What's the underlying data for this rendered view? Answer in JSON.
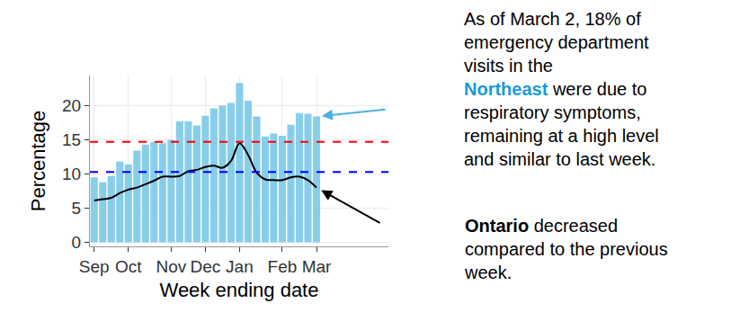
{
  "chart_data": {
    "type": "bar",
    "x_title": "Week ending date",
    "y_title": "Percentage",
    "categories": [
      "Sep",
      null,
      null,
      null,
      "Oct",
      null,
      null,
      null,
      null,
      "Nov",
      null,
      null,
      null,
      "Dec",
      null,
      null,
      null,
      "Jan",
      null,
      null,
      null,
      null,
      "Feb",
      null,
      null,
      null,
      "Mar"
    ],
    "series": [
      {
        "name": "Northeast",
        "type": "bar",
        "color": "#87ceeb",
        "values": [
          9.5,
          8.8,
          9.7,
          11.8,
          11.4,
          13.4,
          14.3,
          14.7,
          14.5,
          15.0,
          17.7,
          17.7,
          17.1,
          18.5,
          19.6,
          20.0,
          20.4,
          23.3,
          20.7,
          18.4,
          15.5,
          15.9,
          15.6,
          17.2,
          18.9,
          18.8,
          18.4
        ]
      },
      {
        "name": "Ontario",
        "type": "line",
        "color": "#000000",
        "values": [
          6.1,
          6.3,
          6.5,
          7.2,
          7.7,
          8.0,
          8.5,
          9.0,
          9.6,
          9.6,
          9.7,
          10.4,
          10.6,
          11.0,
          11.2,
          10.9,
          11.9,
          14.5,
          12.8,
          10.2,
          9.2,
          9.1,
          9.1,
          9.5,
          9.6,
          9.1,
          8.0
        ]
      }
    ],
    "reference_lines": [
      {
        "value": 14.7,
        "color": "#ff0000",
        "line_style": "dashed"
      },
      {
        "value": 10.3,
        "color": "#0000ff",
        "line_style": "dashed"
      }
    ],
    "ylim": [
      -0.6,
      24.4
    ],
    "yticks": [
      0,
      5,
      10,
      15,
      20
    ],
    "grid": true,
    "annotations": [
      {
        "points_to": "Northeast",
        "arrow_color": "#4cb0e0",
        "lines": [
          [
            {
              "text": "As of March 2, 18% of"
            }
          ],
          [
            {
              "text": "emergency department"
            }
          ],
          [
            {
              "text": "visits in the"
            }
          ],
          [
            {
              "text": "Northeast",
              "color": "#1b9ad6",
              "bold": true
            },
            {
              "text": " were due to"
            }
          ],
          [
            {
              "text": "respiratory symptoms,"
            }
          ],
          [
            {
              "text": "remaining at a high level"
            }
          ],
          [
            {
              "text": "and similar to last week."
            }
          ]
        ]
      },
      {
        "points_to": "Ontario",
        "arrow_color": "#000000",
        "lines": [
          [
            {
              "text": "Ontario",
              "bold": true
            },
            {
              "text": " decreased"
            }
          ],
          [
            {
              "text": "compared to the previous"
            }
          ],
          [
            {
              "text": "week."
            }
          ]
        ]
      }
    ]
  }
}
